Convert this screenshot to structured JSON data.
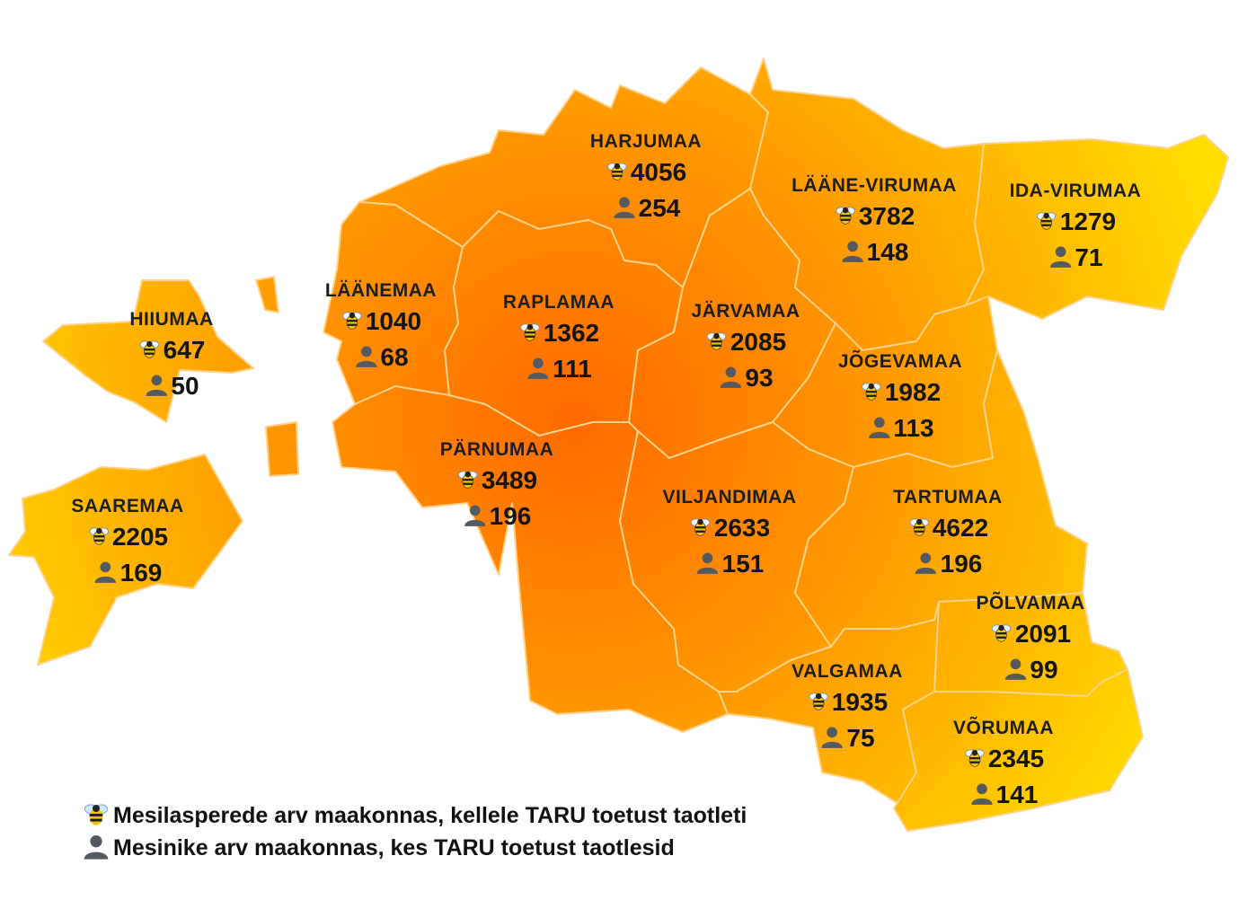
{
  "counties": [
    {
      "id": "harjumaa",
      "name": "HARJUMAA",
      "colonies": "4056",
      "beekeepers": "254"
    },
    {
      "id": "laane-virumaa",
      "name": "LÄÄNE-VIRUMAA",
      "colonies": "3782",
      "beekeepers": "148"
    },
    {
      "id": "ida-virumaa",
      "name": "IDA-VIRUMAA",
      "colonies": "1279",
      "beekeepers": "71"
    },
    {
      "id": "hiiumaa",
      "name": "HIIUMAA",
      "colonies": "647",
      "beekeepers": "50"
    },
    {
      "id": "laanemaa",
      "name": "LÄÄNEMAA",
      "colonies": "1040",
      "beekeepers": "68"
    },
    {
      "id": "raplamaa",
      "name": "RAPLAMAA",
      "colonies": "1362",
      "beekeepers": "111"
    },
    {
      "id": "jarvamaa",
      "name": "JÄRVAMAA",
      "colonies": "2085",
      "beekeepers": "93"
    },
    {
      "id": "jogevamaa",
      "name": "JÕGEVAMAA",
      "colonies": "1982",
      "beekeepers": "113"
    },
    {
      "id": "parnumaa",
      "name": "PÄRNUMAA",
      "colonies": "3489",
      "beekeepers": "196"
    },
    {
      "id": "saaremaa",
      "name": "SAAREMAA",
      "colonies": "2205",
      "beekeepers": "169"
    },
    {
      "id": "viljandimaa",
      "name": "VILJANDIMAA",
      "colonies": "2633",
      "beekeepers": "151"
    },
    {
      "id": "tartumaa",
      "name": "TARTUMAA",
      "colonies": "4622",
      "beekeepers": "196"
    },
    {
      "id": "polvamaa",
      "name": "PÕLVAMAA",
      "colonies": "2091",
      "beekeepers": "99"
    },
    {
      "id": "valgamaa",
      "name": "VALGAMAA",
      "colonies": "1935",
      "beekeepers": "75"
    },
    {
      "id": "vorumaa",
      "name": "VÕRUMAA",
      "colonies": "2345",
      "beekeepers": "141"
    }
  ],
  "legend": {
    "colonies": "Mesilasperede arv maakonnas, kellele TARU toetust taotleti",
    "beekeepers": "Mesinike arv maakonnas, kes TARU toetust taotlesid"
  },
  "colors": {
    "center": "#ff6a00",
    "edge": "#ffde00",
    "border": "#ffd28a"
  },
  "icons": {
    "colonies": "bee-icon",
    "beekeepers": "person-icon"
  }
}
